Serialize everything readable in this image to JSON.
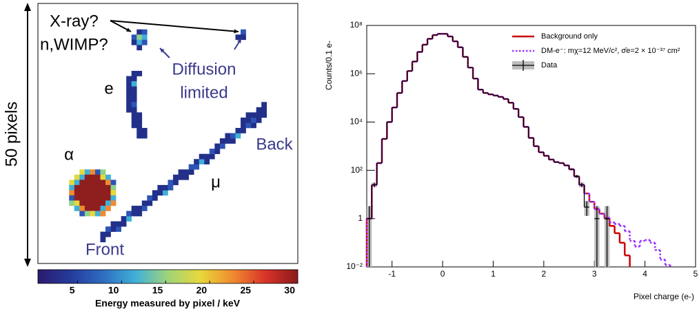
{
  "chart_data": [
    {
      "type": "image",
      "annotations": [
        "X-ray?",
        "n,WIMP?",
        "Diffusion",
        "limited",
        "e",
        "α",
        "μ",
        "Back",
        "Front"
      ],
      "scale_label": "50 pixels",
      "colorbar": {
        "label": "Energy measured by pixel / keV",
        "lim": [
          0.5,
          30
        ],
        "ticks": [
          5,
          10,
          15,
          20,
          25,
          30
        ],
        "colormap": [
          "#2b1b6e",
          "#253a9a",
          "#2f6cc0",
          "#3fb0d8",
          "#9fd47a",
          "#e8d83a",
          "#f08a30",
          "#d8342a",
          "#8a1a1a"
        ]
      }
    },
    {
      "type": "histogram",
      "xlabel": "Pixel charge (e-)",
      "ylabel": "Counts/0.1 e-",
      "xlim": [
        -1.5,
        5
      ],
      "ylim": [
        0.01,
        100000000
      ],
      "yscale": "log",
      "xticks": [
        -1,
        0,
        1,
        2,
        3,
        4,
        5
      ],
      "yticks": [
        {
          "value": 0.01,
          "label": "10⁻²"
        },
        1,
        {
          "value": 100,
          "label": "10²"
        },
        {
          "value": 10000,
          "label": "10⁴"
        },
        {
          "value": 1000000,
          "label": "10⁶"
        },
        {
          "value": 100000000,
          "label": "10⁸"
        }
      ],
      "legend": "upper right",
      "bins": [
        -1.5,
        -1.4,
        -1.3,
        -1.2,
        -1.1,
        -1,
        -0.9,
        -0.8,
        -0.7,
        -0.6,
        -0.5,
        -0.4,
        -0.3,
        -0.2,
        -0.1,
        0,
        0.1,
        0.2,
        0.3,
        0.4,
        0.5,
        0.6,
        0.7,
        0.8,
        0.9,
        1,
        1.1,
        1.2,
        1.3,
        1.4,
        1.5,
        1.6,
        1.7,
        1.8,
        1.9,
        2,
        2.1,
        2.2,
        2.3,
        2.4,
        2.5,
        2.6,
        2.7,
        2.8,
        2.9,
        3,
        3.1,
        3.2,
        3.3,
        3.4,
        3.5,
        3.6,
        3.7,
        3.8,
        3.9,
        4,
        4.1,
        4.2,
        4.3,
        4.4,
        4.5,
        4.6
      ],
      "series": [
        {
          "name": "Background only",
          "color": "#cc0000",
          "dash": "solid",
          "values": [
            1,
            25,
            200,
            2000,
            10000,
            40000,
            160000,
            500000,
            1300000,
            3200000,
            8000000,
            16000000,
            28000000,
            40000000,
            45000000,
            45000000,
            35000000,
            22000000,
            12500000,
            5000000,
            1800000,
            630000,
            220000,
            160000,
            140000,
            125000,
            110000,
            90000,
            63000,
            35000,
            16000,
            6300,
            2200,
            1000,
            560,
            400,
            280,
            220,
            200,
            160,
            110,
            56,
            25,
            11,
            5,
            2.5,
            1.6,
            1,
            0.5,
            0.25,
            0.1,
            0.03,
            null,
            null,
            null,
            null,
            null,
            null,
            null,
            null,
            null
          ]
        },
        {
          "name": "DM-e⁻: mχ=12 MeV/c², σ̄e=2 × 10⁻³⁷ cm²",
          "color": "#9b30ff",
          "dash": "dotted",
          "values": [
            1,
            25,
            200,
            2000,
            10000,
            40000,
            160000,
            500000,
            1300000,
            3200000,
            8000000,
            16000000,
            28000000,
            40000000,
            45000000,
            45000000,
            35000000,
            22000000,
            12500000,
            5000000,
            1800000,
            630000,
            220000,
            160000,
            140000,
            125000,
            110000,
            90000,
            63000,
            35000,
            16000,
            6300,
            2200,
            1000,
            560,
            400,
            280,
            220,
            200,
            160,
            110,
            56,
            25,
            11,
            5,
            2.5,
            1.6,
            1.1,
            0.7,
            0.6,
            0.5,
            0.3,
            0.12,
            0.07,
            0.12,
            0.13,
            0.1,
            0.05,
            0.02,
            0.012,
            null
          ]
        },
        {
          "name": "Data",
          "color": "#000000",
          "dash": "solid",
          "values": [
            1,
            25,
            200,
            2000,
            10000,
            40000,
            160000,
            500000,
            1300000,
            3200000,
            8000000,
            16000000,
            28000000,
            40000000,
            45000000,
            45000000,
            35000000,
            22000000,
            12500000,
            5000000,
            1800000,
            630000,
            220000,
            160000,
            140000,
            125000,
            110000,
            90000,
            63000,
            35000,
            16000,
            6300,
            2200,
            1000,
            560,
            400,
            280,
            220,
            200,
            160,
            110,
            56,
            25,
            3,
            null,
            1,
            null,
            1,
            null,
            null,
            null,
            null,
            null,
            null,
            null,
            null,
            null,
            null,
            null,
            null,
            null
          ],
          "error_low": [
            1,
            5,
            null,
            null,
            null,
            null,
            null,
            null,
            null,
            null,
            null,
            null,
            null,
            null,
            null,
            null,
            null,
            null,
            null,
            null,
            null,
            null,
            null,
            null,
            null,
            null,
            null,
            null,
            null,
            null,
            null,
            null,
            null,
            null,
            null,
            null,
            null,
            null,
            null,
            null,
            10,
            7,
            5,
            1.7,
            null,
            1,
            null,
            1,
            null,
            null,
            null,
            null,
            null,
            null,
            null,
            null,
            null,
            null,
            null,
            null,
            null
          ],
          "error_high": [
            2.3,
            6,
            null,
            null,
            null,
            null,
            null,
            null,
            null,
            null,
            null,
            null,
            null,
            null,
            null,
            null,
            null,
            null,
            null,
            null,
            null,
            null,
            null,
            null,
            null,
            null,
            null,
            null,
            null,
            null,
            null,
            null,
            null,
            null,
            null,
            null,
            null,
            null,
            null,
            null,
            11,
            8,
            6,
            2.3,
            null,
            2.3,
            null,
            2.3,
            null,
            null,
            null,
            null,
            null,
            null,
            null,
            null,
            null,
            null,
            null,
            null,
            null
          ]
        }
      ]
    }
  ]
}
